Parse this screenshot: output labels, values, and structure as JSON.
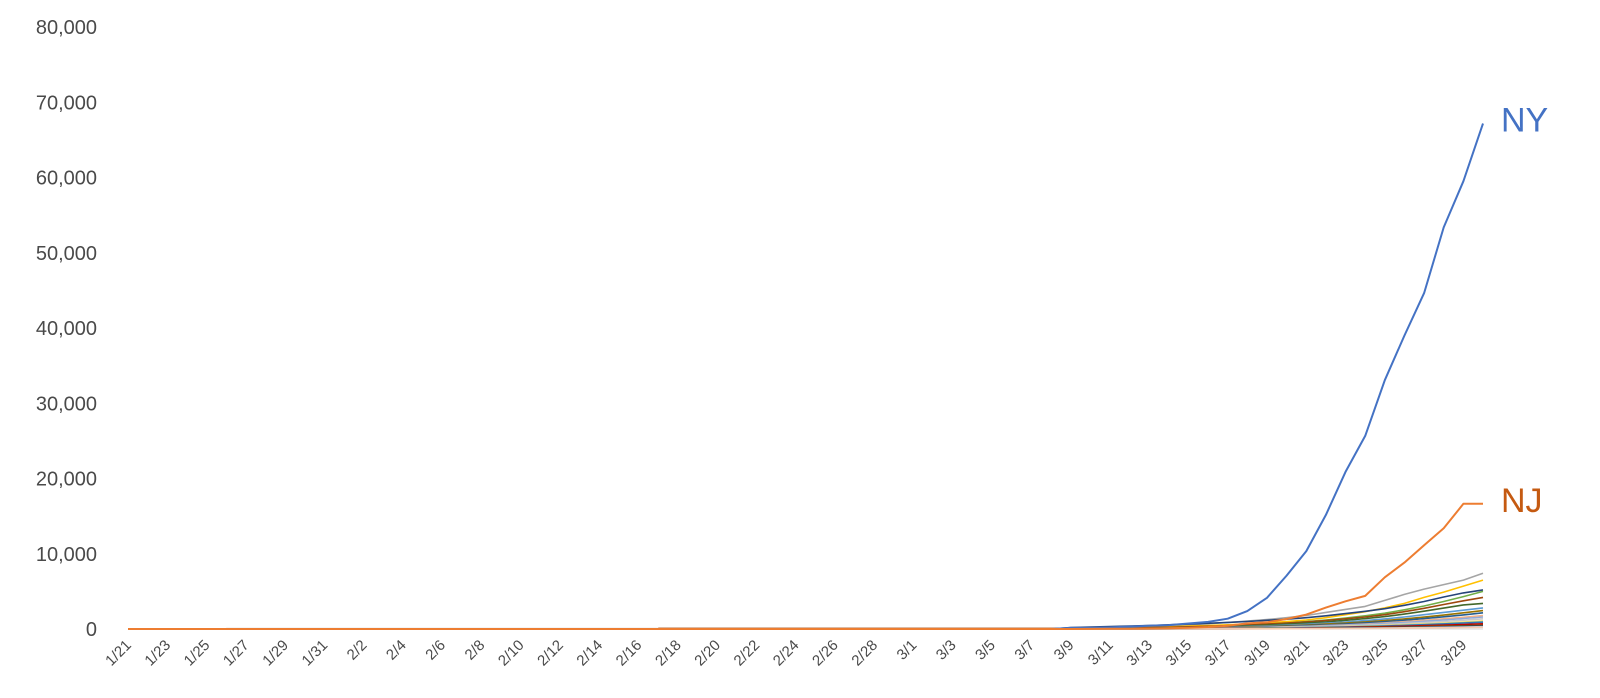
{
  "chart_data": {
    "type": "line",
    "title": "",
    "xlabel": "",
    "ylabel": "",
    "ylim": [
      0,
      80000
    ],
    "grid": false,
    "legend": "none",
    "y_ticks": [
      "0",
      "10,000",
      "20,000",
      "30,000",
      "40,000",
      "50,000",
      "60,000",
      "70,000",
      "80,000"
    ],
    "x_ticks": [
      "1/21",
      "1/23",
      "1/25",
      "1/27",
      "1/29",
      "1/31",
      "2/2",
      "2/4",
      "2/6",
      "2/8",
      "2/10",
      "2/12",
      "2/14",
      "2/16",
      "2/18",
      "2/20",
      "2/22",
      "2/24",
      "2/26",
      "2/28",
      "3/1",
      "3/3",
      "3/5",
      "3/7",
      "3/9",
      "3/11",
      "3/13",
      "3/15",
      "3/17",
      "3/19",
      "3/21",
      "3/23",
      "3/25",
      "3/27",
      "3/29"
    ],
    "x": [
      "1/21",
      "1/22",
      "1/23",
      "1/24",
      "1/25",
      "1/26",
      "1/27",
      "1/28",
      "1/29",
      "1/30",
      "1/31",
      "2/1",
      "2/2",
      "2/3",
      "2/4",
      "2/5",
      "2/6",
      "2/7",
      "2/8",
      "2/9",
      "2/10",
      "2/11",
      "2/12",
      "2/13",
      "2/14",
      "2/15",
      "2/16",
      "2/17",
      "2/18",
      "2/19",
      "2/20",
      "2/21",
      "2/22",
      "2/23",
      "2/24",
      "2/25",
      "2/26",
      "2/27",
      "2/28",
      "2/29",
      "3/1",
      "3/2",
      "3/3",
      "3/4",
      "3/5",
      "3/6",
      "3/7",
      "3/8",
      "3/9",
      "3/10",
      "3/11",
      "3/12",
      "3/13",
      "3/14",
      "3/15",
      "3/16",
      "3/17",
      "3/18",
      "3/19",
      "3/20",
      "3/21",
      "3/22",
      "3/23",
      "3/24",
      "3/25",
      "3/26",
      "3/27",
      "3/28",
      "3/29",
      "3/30"
    ],
    "tail_dates": [
      "3/9",
      "3/10",
      "3/11",
      "3/12",
      "3/13",
      "3/14",
      "3/15",
      "3/16",
      "3/17",
      "3/18",
      "3/19",
      "3/20",
      "3/21",
      "3/22",
      "3/23",
      "3/24",
      "3/25",
      "3/26",
      "3/27",
      "3/28",
      "3/29",
      "3/30"
    ],
    "labeled_series": [
      {
        "name": "NY",
        "color": "#4472c4",
        "label_color": "#4472c4",
        "values": [
          142,
          173,
          216,
          325,
          421,
          524,
          729,
          950,
          1374,
          2382,
          4152,
          7102,
          10356,
          15168,
          20875,
          25665,
          33066,
          38987,
          44635,
          53363,
          59513,
          67174
        ]
      },
      {
        "name": "NJ",
        "color": "#ed7d31",
        "label_color": "#c55a11",
        "values": [
          6,
          15,
          23,
          29,
          69,
          98,
          178,
          267,
          427,
          742,
          890,
          1327,
          1914,
          2844,
          3675,
          4402,
          6876,
          8825,
          11124,
          13386,
          16636,
          16636
        ]
      }
    ],
    "other_series": [
      {
        "color": "#a5a5a5",
        "values": [
          130,
          160,
          200,
          260,
          320,
          420,
          560,
          700,
          870,
          1050,
          1250,
          1500,
          1800,
          2200,
          2600,
          3000,
          3800,
          4600,
          5300,
          5900,
          6500,
          7400
        ]
      },
      {
        "color": "#ffc000",
        "values": [
          70,
          95,
          130,
          170,
          220,
          290,
          380,
          470,
          560,
          680,
          820,
          990,
          1200,
          1500,
          1900,
          2300,
          2800,
          3400,
          4200,
          4900,
          5700,
          6500
        ]
      },
      {
        "color": "#264478",
        "values": [
          200,
          260,
          330,
          400,
          470,
          560,
          650,
          760,
          880,
          1000,
          1150,
          1300,
          1500,
          1750,
          2050,
          2350,
          2700,
          3150,
          3650,
          4250,
          4800,
          5200
        ]
      },
      {
        "color": "#70ad47",
        "values": [
          40,
          60,
          80,
          110,
          150,
          200,
          260,
          330,
          420,
          530,
          650,
          800,
          980,
          1200,
          1450,
          1750,
          2100,
          2550,
          3050,
          3650,
          4300,
          5000
        ]
      },
      {
        "color": "#9e480e",
        "values": [
          60,
          80,
          110,
          140,
          180,
          230,
          290,
          360,
          440,
          540,
          650,
          780,
          940,
          1130,
          1350,
          1600,
          1900,
          2300,
          2750,
          3250,
          3750,
          4200
        ]
      },
      {
        "color": "#43682b",
        "values": [
          30,
          45,
          60,
          80,
          110,
          150,
          200,
          260,
          330,
          420,
          520,
          640,
          780,
          950,
          1150,
          1380,
          1650,
          1980,
          2360,
          2780,
          3200,
          3400
        ]
      },
      {
        "color": "#5b9bd5",
        "values": [
          20,
          30,
          45,
          60,
          80,
          110,
          150,
          200,
          260,
          330,
          410,
          510,
          630,
          770,
          930,
          1120,
          1340,
          1600,
          1900,
          2200,
          2500,
          2800
        ]
      },
      {
        "color": "#997300",
        "values": [
          20,
          30,
          40,
          55,
          75,
          100,
          130,
          170,
          220,
          280,
          350,
          430,
          530,
          650,
          790,
          950,
          1130,
          1340,
          1580,
          1850,
          2150,
          2450
        ]
      },
      {
        "color": "#255e91",
        "values": [
          15,
          22,
          30,
          42,
          58,
          80,
          105,
          140,
          180,
          230,
          290,
          360,
          450,
          550,
          670,
          810,
          970,
          1160,
          1380,
          1620,
          1880,
          2150
        ]
      },
      {
        "color": "#f4b183",
        "values": [
          10,
          15,
          22,
          30,
          42,
          58,
          80,
          105,
          140,
          180,
          230,
          290,
          360,
          450,
          550,
          670,
          810,
          970,
          1150,
          1350,
          1560,
          1800
        ]
      },
      {
        "color": "#8faadc",
        "values": [
          8,
          12,
          18,
          25,
          35,
          48,
          65,
          88,
          118,
          155,
          200,
          255,
          320,
          400,
          490,
          600,
          720,
          860,
          1020,
          1200,
          1390,
          1600
        ]
      },
      {
        "color": "#c9c9c9",
        "values": [
          8,
          12,
          16,
          22,
          30,
          40,
          55,
          75,
          100,
          130,
          170,
          215,
          270,
          335,
          410,
          500,
          600,
          720,
          860,
          1010,
          1170,
          1350
        ]
      },
      {
        "color": "#ffd966",
        "values": [
          5,
          8,
          12,
          17,
          24,
          33,
          45,
          60,
          80,
          105,
          135,
          170,
          215,
          265,
          325,
          395,
          475,
          570,
          680,
          800,
          930,
          1080
        ]
      },
      {
        "color": "#a9d18e",
        "values": [
          5,
          7,
          10,
          14,
          19,
          26,
          36,
          49,
          66,
          88,
          115,
          148,
          188,
          235,
          290,
          355,
          430,
          515,
          610,
          720,
          840,
          970
        ]
      },
      {
        "color": "#2e75b6",
        "values": [
          4,
          6,
          9,
          13,
          18,
          25,
          34,
          46,
          62,
          82,
          107,
          138,
          175,
          220,
          272,
          333,
          403,
          483,
          573,
          675,
          788,
          900
        ]
      },
      {
        "color": "#c00000",
        "values": [
          3,
          5,
          7,
          10,
          14,
          19,
          26,
          35,
          47,
          62,
          81,
          104,
          132,
          165,
          204,
          250,
          303,
          364,
          433,
          511,
          598,
          690
        ]
      },
      {
        "color": "#7f6000",
        "values": [
          3,
          4,
          6,
          8,
          11,
          15,
          20,
          27,
          36,
          47,
          61,
          78,
          98,
          122,
          150,
          183,
          221,
          264,
          313,
          368,
          429,
          497
        ]
      },
      {
        "color": "#1f3864",
        "values": [
          2,
          3,
          5,
          7,
          9,
          12,
          16,
          21,
          28,
          37,
          48,
          61,
          77,
          96,
          118,
          144,
          174,
          208,
          247,
          291,
          340,
          394
        ]
      },
      {
        "color": "#b4c7e7",
        "values": [
          2,
          3,
          4,
          6,
          8,
          10,
          13,
          17,
          22,
          29,
          37,
          47,
          59,
          73,
          90,
          110,
          133,
          159,
          189,
          222,
          259,
          300
        ]
      },
      {
        "color": "#f8cbad",
        "values": [
          1,
          2,
          3,
          4,
          5,
          7,
          9,
          12,
          16,
          21,
          27,
          34,
          43,
          54,
          67,
          82,
          100,
          120,
          143,
          169,
          198,
          230
        ]
      }
    ],
    "early_series": [
      {
        "color": "#264478",
        "from": "1/21",
        "to": "1/25",
        "value": 1
      },
      {
        "color": "#c00000",
        "from": "1/24",
        "to": "1/26",
        "value": 1
      },
      {
        "color": "#9e480e",
        "from": "2/17",
        "to": "3/9",
        "value": 45
      },
      {
        "color": "#a5a5a5",
        "from": "1/26",
        "to": "2/17",
        "value": 10
      }
    ]
  }
}
